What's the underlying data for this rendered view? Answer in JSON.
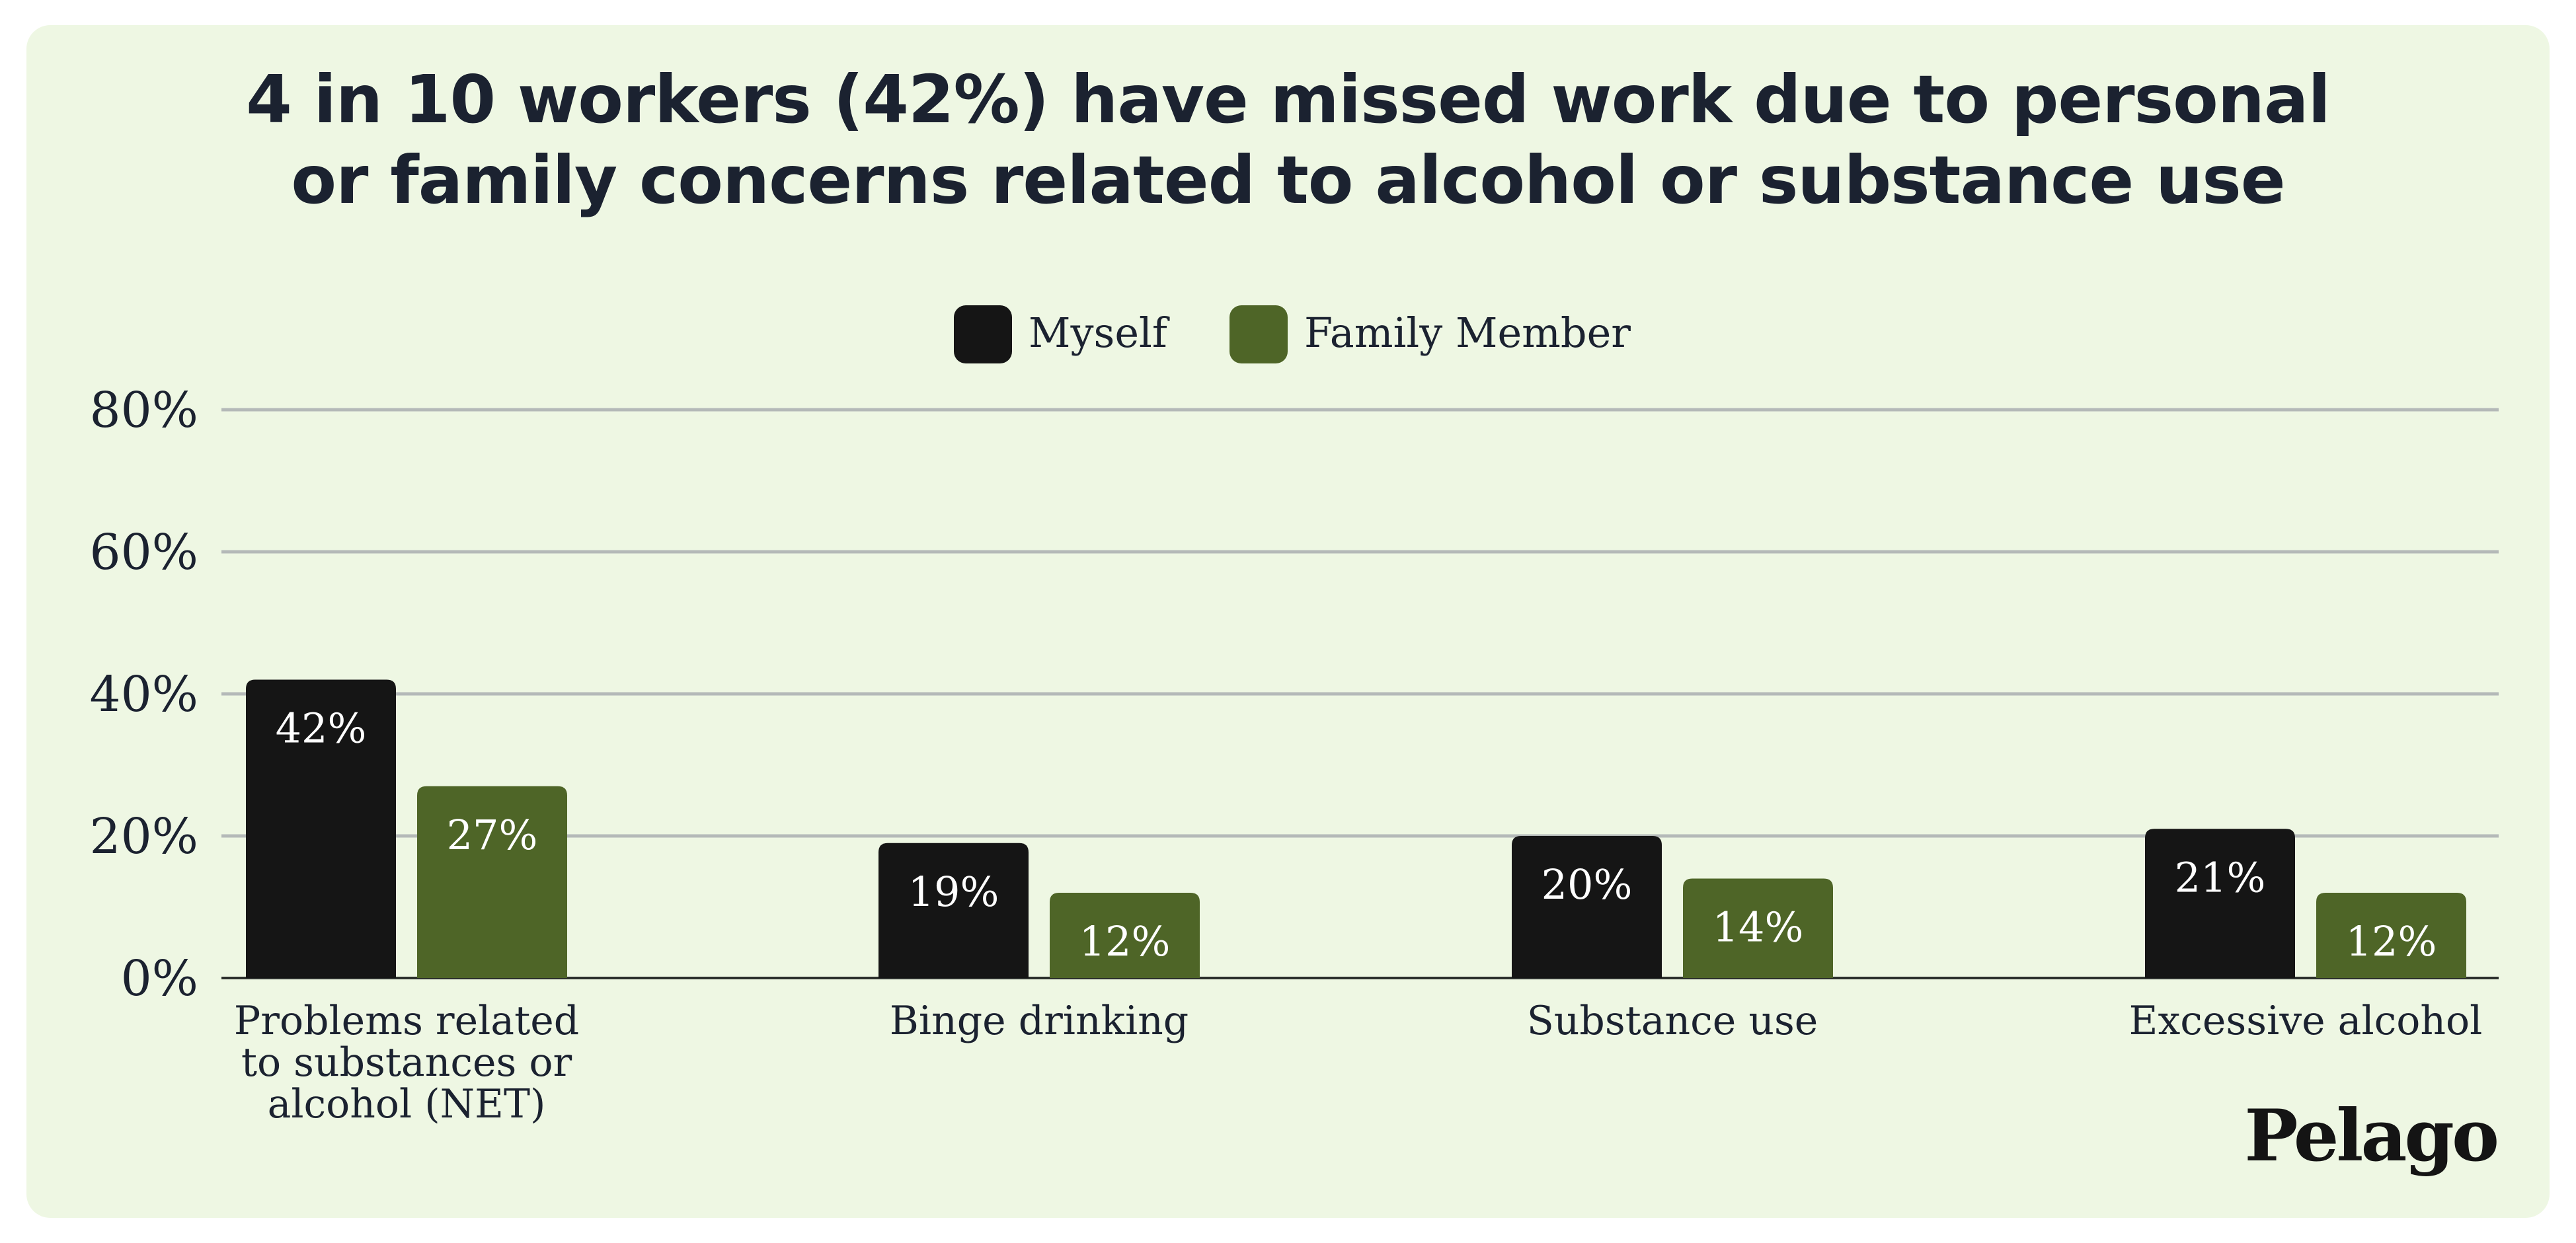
{
  "title": {
    "line1": "4 in 10 workers (42%) have missed work due to personal",
    "line2": "or family concerns related to alcohol or substance use"
  },
  "brand": {
    "logo_text": "Pelago"
  },
  "colors": {
    "background": "#eef7e3",
    "myself": "#151515",
    "family": "#4e6527",
    "grid": "#b4b9b8",
    "text": "#1b2230",
    "bar_label": "#ffffff"
  },
  "chart_data": {
    "type": "bar",
    "title": "4 in 10 workers (42%) have missed work due to personal or family concerns related to alcohol or substance use",
    "categories": [
      [
        "Problems related",
        "to substances or",
        "alcohol (NET)"
      ],
      [
        "Binge drinking"
      ],
      [
        "Substance use"
      ],
      [
        "Excessive alcohol"
      ]
    ],
    "series": [
      {
        "name": "Myself",
        "color": "#151515",
        "values": [
          42,
          19,
          20,
          21
        ],
        "labels": [
          "42%",
          "19%",
          "20%",
          "21%"
        ]
      },
      {
        "name": "Family Member",
        "color": "#4e6527",
        "values": [
          27,
          12,
          14,
          12
        ],
        "labels": [
          "27%",
          "12%",
          "14%",
          "12%"
        ]
      }
    ],
    "yticks": [
      0,
      20,
      40,
      60,
      80
    ],
    "ytick_labels": [
      "0%",
      "20%",
      "40%",
      "60%",
      "80%"
    ],
    "ylim": [
      0,
      80
    ],
    "xlabel": "",
    "ylabel": "",
    "grid": true,
    "legend": "top-center"
  }
}
